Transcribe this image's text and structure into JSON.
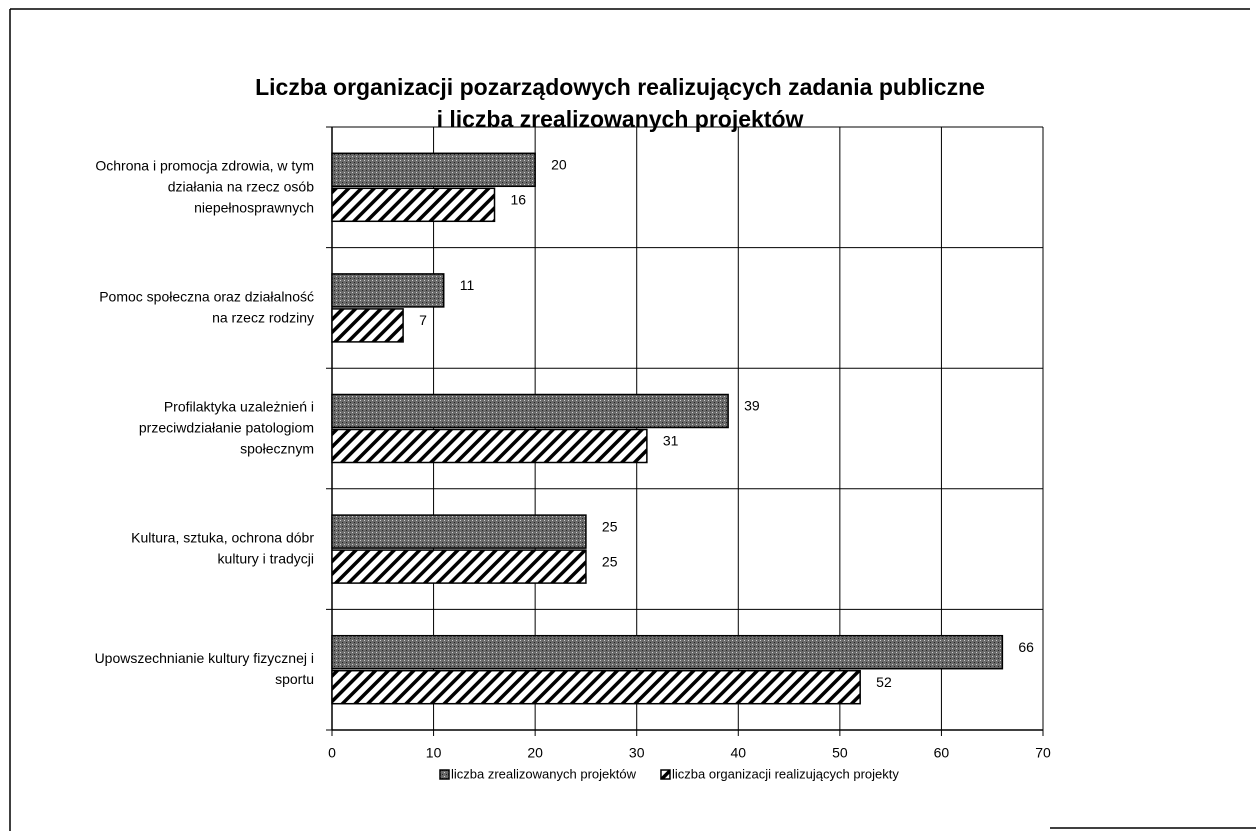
{
  "chart_data": {
    "type": "bar",
    "orientation": "horizontal",
    "title": [
      "Liczba organizacji pozarządowych realizujących zadania publiczne",
      "i liczba zrealizowanych projektów"
    ],
    "categories": [
      [
        "Ochrona i promocja zdrowia, w tym",
        "działania na rzecz osób",
        "niepełnosprawnych"
      ],
      [
        "Pomoc społeczna oraz działalność",
        "na rzecz rodziny"
      ],
      [
        "Profilaktyka uzależnień i",
        "przeciwdziałanie patologiom",
        "społecznym"
      ],
      [
        "Kultura, sztuka, ochrona dóbr",
        "kultury i tradycji"
      ],
      [
        "Upowszechnianie kultury fizycznej i",
        "sportu"
      ]
    ],
    "series": [
      {
        "name": "liczba zrealizowanych projektów",
        "color": "#5c5c5c",
        "pattern": "dots",
        "values": [
          20,
          11,
          39,
          25,
          66
        ]
      },
      {
        "name": "liczba organizacji realizujących projekty",
        "color": "#000000",
        "pattern": "hatch",
        "values": [
          16,
          7,
          31,
          25,
          52
        ]
      }
    ],
    "xlim": [
      0,
      70
    ],
    "xticks": [
      0,
      10,
      20,
      30,
      40,
      50,
      60,
      70
    ],
    "grid": true,
    "legend": "bottom"
  }
}
